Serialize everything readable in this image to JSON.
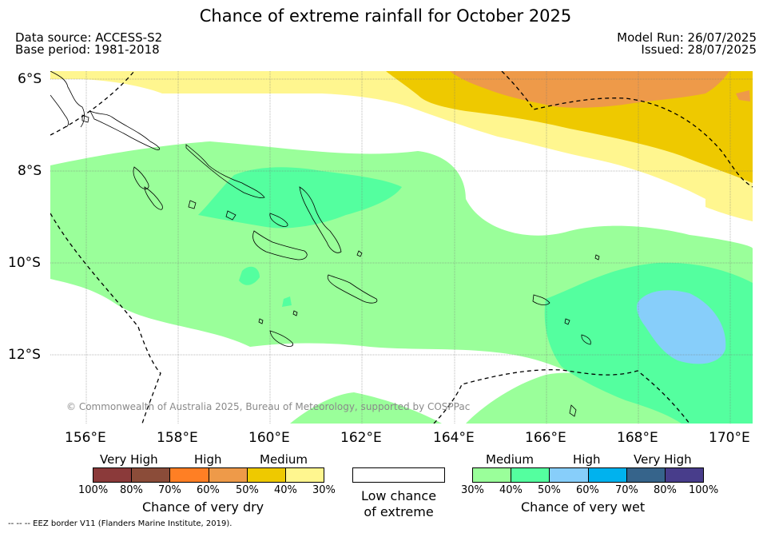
{
  "title": "Chance of extreme rainfall for October 2025",
  "meta": {
    "data_source": "Data source: ACCESS-S2",
    "base_period": "Base period: 1981-2018",
    "model_run": "Model Run: 26/07/2025",
    "issued": "Issued: 28/07/2025"
  },
  "map": {
    "lat_labels": [
      "6°S",
      "8°S",
      "10°S",
      "12°S"
    ],
    "lon_labels": [
      "156°E",
      "158°E",
      "160°E",
      "162°E",
      "164°E",
      "166°E",
      "168°E",
      "170°E"
    ],
    "copyright": "© Commonwealth of Australia 2025, Bureau of Meteorology, supported by COSPPac",
    "colors": {
      "land_outline": "#000000",
      "dry_medium": "#fff68f",
      "dry_high": "#eec900",
      "dry_high2": "#ee9a49",
      "wet_medium": "#9aff9a",
      "wet_high": "#54ff9f",
      "wet_high2": "#87cefa",
      "eez_border": "#000000"
    }
  },
  "legend": {
    "dry": {
      "headers": [
        "Very High",
        "High",
        "Medium"
      ],
      "ticks": [
        "100%",
        "80%",
        "70%",
        "60%",
        "50%",
        "40%",
        "30%"
      ],
      "colors": [
        "#8b3a3a",
        "#8b4c39",
        "#ff7f24",
        "#ee9a49",
        "#eec900",
        "#fff68f"
      ],
      "caption": "Chance of very dry"
    },
    "low": {
      "caption_line1": "Low chance",
      "caption_line2": "of extreme"
    },
    "wet": {
      "headers": [
        "Medium",
        "High",
        "Very High"
      ],
      "ticks": [
        "30%",
        "40%",
        "50%",
        "60%",
        "70%",
        "80%",
        "100%"
      ],
      "colors": [
        "#9aff9a",
        "#54ff9f",
        "#87cefa",
        "#00b2ee",
        "#36648b",
        "#483d8b"
      ],
      "caption": "Chance of very wet"
    }
  },
  "footnote": "--  --  -- EEZ border V11 (Flanders Marine Institute, 2019)."
}
